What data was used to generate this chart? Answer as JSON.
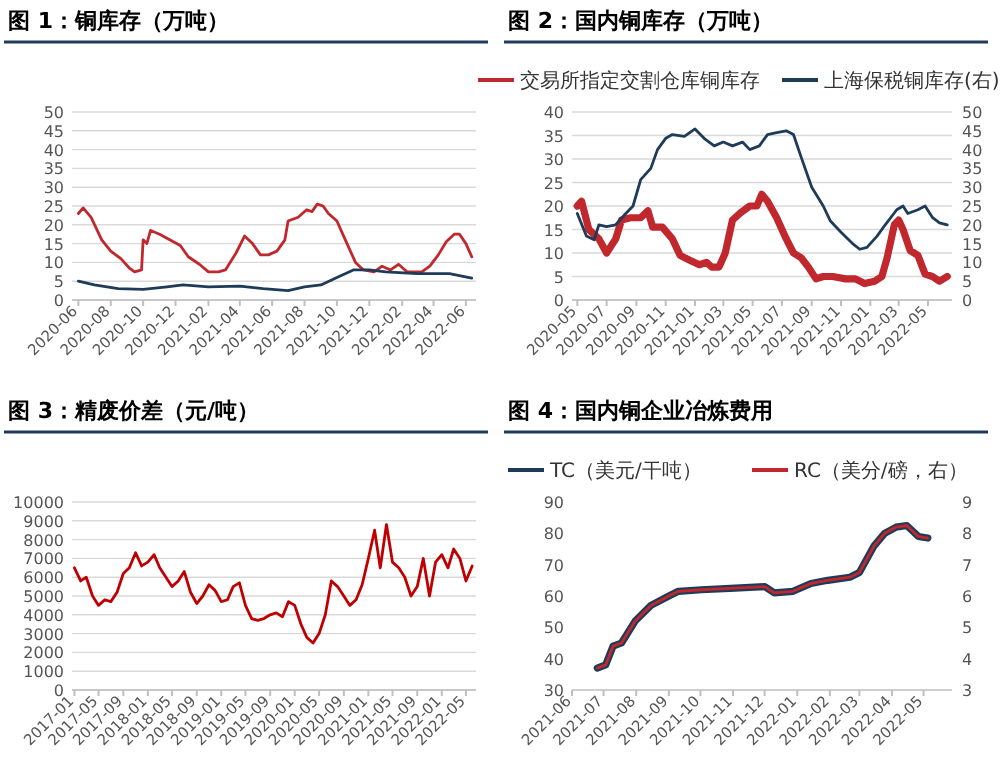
{
  "chart_data": [
    {
      "type": "line",
      "title": "图 1：铜库存（万吨）",
      "ylim": [
        0,
        50
      ],
      "yticks": [
        0,
        5,
        10,
        15,
        20,
        25,
        30,
        35,
        40,
        45,
        50
      ],
      "xlim": [
        "2020-05-20",
        "2022-06-20"
      ],
      "xticks": [
        "2020-06",
        "2020-08",
        "2020-10",
        "2020-12",
        "2021-02",
        "2021-04",
        "2021-06",
        "2021-08",
        "2021-10",
        "2021-12",
        "2022-02",
        "2022-04",
        "2022-06"
      ],
      "grid": "y",
      "legend": false,
      "series": [
        {
          "color": "#c0282d",
          "x": [
            "2020-06-01",
            "2020-06-10",
            "2020-06-25",
            "2020-07-15",
            "2020-08-01",
            "2020-08-20",
            "2020-09-05",
            "2020-09-15",
            "2020-09-28",
            "2020-10-01",
            "2020-10-08",
            "2020-10-15",
            "2020-11-01",
            "2020-11-20",
            "2020-12-10",
            "2020-12-25",
            "2021-01-15",
            "2021-02-01",
            "2021-02-20",
            "2021-03-05",
            "2021-03-25",
            "2021-04-10",
            "2021-04-25",
            "2021-05-10",
            "2021-05-25",
            "2021-06-10",
            "2021-06-25",
            "2021-07-01",
            "2021-07-20",
            "2021-08-05",
            "2021-08-15",
            "2021-08-25",
            "2021-09-05",
            "2021-09-15",
            "2021-10-01",
            "2021-10-20",
            "2021-11-05",
            "2021-11-20",
            "2021-12-10",
            "2021-12-25",
            "2022-01-10",
            "2022-01-25",
            "2022-02-10",
            "2022-02-25",
            "2022-03-10",
            "2022-03-25",
            "2022-04-10",
            "2022-04-25",
            "2022-05-10",
            "2022-05-20",
            "2022-06-01",
            "2022-06-12"
          ],
          "values": [
            23,
            24.5,
            22,
            16,
            13,
            11,
            8.5,
            7.5,
            8,
            16,
            15,
            18.5,
            17.5,
            16,
            14.5,
            11.5,
            9.5,
            7.5,
            7.5,
            8,
            12.5,
            17,
            15,
            12,
            12,
            13,
            16,
            21,
            22,
            24,
            23.5,
            25.5,
            25,
            23,
            21,
            15,
            10,
            8,
            7.5,
            9,
            8,
            9.5,
            7.5,
            7.5,
            7.5,
            9,
            12,
            15.5,
            17.5,
            17.5,
            15,
            11.5
          ]
        },
        {
          "color": "#1f3b5a",
          "x": [
            "2020-06-01",
            "2020-07-01",
            "2020-08-15",
            "2020-10-01",
            "2020-11-15",
            "2020-12-15",
            "2021-02-01",
            "2021-04-01",
            "2021-05-15",
            "2021-07-01",
            "2021-08-01",
            "2021-09-01",
            "2021-10-01",
            "2021-11-01",
            "2021-12-01",
            "2022-01-01",
            "2022-03-01",
            "2022-04-01",
            "2022-05-01",
            "2022-06-12"
          ],
          "values": [
            5,
            4,
            3,
            2.8,
            3.5,
            4,
            3.5,
            3.7,
            3,
            2.5,
            3.5,
            4,
            6,
            8,
            8,
            7.5,
            7,
            7,
            7,
            5.8
          ]
        }
      ]
    },
    {
      "type": "line",
      "title": "图 2：国内铜库存（万吨）",
      "ylim": [
        0,
        40
      ],
      "yticks": [
        0,
        5,
        10,
        15,
        20,
        25,
        30,
        35,
        40
      ],
      "y2lim": [
        0,
        50
      ],
      "y2ticks": [
        0,
        5,
        10,
        15,
        20,
        25,
        30,
        35,
        40,
        45,
        50
      ],
      "xlim": [
        "2020-04-20",
        "2022-06-20"
      ],
      "xticks": [
        "2020-05",
        "2020-07",
        "2020-09",
        "2020-11",
        "2021-01",
        "2021-03",
        "2021-05",
        "2021-07",
        "2021-09",
        "2021-11",
        "2022-01",
        "2022-03",
        "2022-05"
      ],
      "grid": "y",
      "legend": "top",
      "series": [
        {
          "name": "交易所指定交割仓库铜库存",
          "color": "#c0282d",
          "x": [
            "2020-05-01",
            "2020-05-10",
            "2020-05-25",
            "2020-06-15",
            "2020-07-01",
            "2020-07-20",
            "2020-08-01",
            "2020-08-20",
            "2020-09-10",
            "2020-09-25",
            "2020-10-05",
            "2020-10-25",
            "2020-11-15",
            "2020-12-01",
            "2020-12-20",
            "2021-01-10",
            "2021-01-25",
            "2021-02-05",
            "2021-02-20",
            "2021-03-05",
            "2021-03-20",
            "2021-04-05",
            "2021-04-25",
            "2021-05-10",
            "2021-05-20",
            "2021-06-01",
            "2021-06-20",
            "2021-07-10",
            "2021-07-25",
            "2021-08-10",
            "2021-08-25",
            "2021-09-10",
            "2021-09-25",
            "2021-10-15",
            "2021-11-10",
            "2021-12-01",
            "2021-12-20",
            "2022-01-10",
            "2022-01-25",
            "2022-02-05",
            "2022-02-20",
            "2022-03-01",
            "2022-03-10",
            "2022-03-25",
            "2022-04-10",
            "2022-04-25",
            "2022-05-10",
            "2022-05-25",
            "2022-06-10"
          ],
          "values": [
            20,
            21,
            15,
            13,
            10,
            13,
            17,
            17.5,
            17.5,
            19,
            15.5,
            15.5,
            13,
            9.5,
            8.5,
            7.5,
            8,
            7,
            7,
            10,
            17,
            18.5,
            20,
            20,
            22.5,
            21,
            17.5,
            13,
            10,
            9,
            7,
            4.5,
            5,
            5,
            4.5,
            4.5,
            3.5,
            4,
            5,
            9,
            16,
            17,
            15,
            10.5,
            9.5,
            5.5,
            5,
            4,
            5
          ]
        },
        {
          "name": "上海保税铜库存(右)",
          "color": "#1f3b5a",
          "axis": "y2",
          "x": [
            "2020-05-01",
            "2020-05-20",
            "2020-06-05",
            "2020-06-15",
            "2020-07-01",
            "2020-07-20",
            "2020-08-10",
            "2020-08-25",
            "2020-09-10",
            "2020-10-01",
            "2020-10-15",
            "2020-11-01",
            "2020-11-15",
            "2020-12-10",
            "2021-01-01",
            "2021-01-20",
            "2021-02-10",
            "2021-03-01",
            "2021-03-20",
            "2021-04-10",
            "2021-04-25",
            "2021-05-15",
            "2021-06-01",
            "2021-06-20",
            "2021-07-10",
            "2021-07-25",
            "2021-08-10",
            "2021-09-01",
            "2021-09-25",
            "2021-10-10",
            "2021-11-01",
            "2021-11-25",
            "2021-12-10",
            "2021-12-25",
            "2022-01-15",
            "2022-02-01",
            "2022-02-25",
            "2022-03-10",
            "2022-03-20",
            "2022-04-10",
            "2022-04-25",
            "2022-05-10",
            "2022-05-25",
            "2022-06-10"
          ],
          "values": [
            23,
            17,
            16,
            20,
            19.5,
            20,
            23,
            25,
            32,
            35,
            40,
            43,
            44,
            43.5,
            45.5,
            43,
            41,
            42,
            41,
            42,
            40,
            41,
            44,
            44.5,
            45,
            44,
            38,
            30,
            25,
            21,
            18,
            15,
            13.5,
            14,
            17,
            20,
            24,
            25,
            23,
            24,
            25,
            22,
            20.5,
            20
          ]
        }
      ]
    },
    {
      "type": "line",
      "title": "图 3：精废价差（元/吨）",
      "ylim": [
        0,
        10000
      ],
      "yticks": [
        0,
        1000,
        2000,
        3000,
        4000,
        5000,
        6000,
        7000,
        8000,
        9000,
        10000
      ],
      "xlim": [
        "2016-12-20",
        "2022-06-20"
      ],
      "xticks": [
        "2017-01",
        "2017-05",
        "2017-09",
        "2018-01",
        "2018-05",
        "2018-09",
        "2019-01",
        "2019-05",
        "2019-09",
        "2020-01",
        "2020-05",
        "2020-09",
        "2021-01",
        "2021-05",
        "2021-09",
        "2022-01",
        "2022-05"
      ],
      "grid": "y",
      "legend": false,
      "series": [
        {
          "color": "#c00000",
          "x": [
            "2017-01",
            "2017-02",
            "2017-03",
            "2017-04",
            "2017-05",
            "2017-06",
            "2017-07",
            "2017-08",
            "2017-09",
            "2017-10",
            "2017-11",
            "2017-12",
            "2018-01",
            "2018-02",
            "2018-03",
            "2018-04",
            "2018-05",
            "2018-06",
            "2018-07",
            "2018-08",
            "2018-09",
            "2018-10",
            "2018-11",
            "2018-12",
            "2019-01",
            "2019-02",
            "2019-03",
            "2019-04",
            "2019-05",
            "2019-06",
            "2019-07",
            "2019-08",
            "2019-09",
            "2019-10",
            "2019-11",
            "2019-12",
            "2020-01",
            "2020-02",
            "2020-03",
            "2020-04",
            "2020-05",
            "2020-06",
            "2020-07",
            "2020-08",
            "2020-09",
            "2020-10",
            "2020-11",
            "2020-12",
            "2021-01",
            "2021-02",
            "2021-03",
            "2021-04",
            "2021-05",
            "2021-06",
            "2021-07",
            "2021-08",
            "2021-09",
            "2021-10",
            "2021-11",
            "2021-12",
            "2022-01",
            "2022-02",
            "2022-03",
            "2022-04",
            "2022-05",
            "2022-06"
          ],
          "values": [
            6500,
            5800,
            6000,
            5000,
            4500,
            4800,
            4700,
            5200,
            6200,
            6500,
            7300,
            6600,
            6800,
            7200,
            6500,
            6000,
            5500,
            5800,
            6300,
            5200,
            4600,
            5000,
            5600,
            5300,
            4700,
            4800,
            5500,
            5700,
            4500,
            3800,
            3700,
            3800,
            4000,
            4100,
            3900,
            4700,
            4500,
            3500,
            2800,
            2500,
            3000,
            4000,
            5800,
            5500,
            5000,
            4500,
            4800,
            5600,
            7000,
            8500,
            6500,
            8800,
            6800,
            6500,
            6000,
            5000,
            5500,
            7000,
            5000,
            6800,
            7200,
            6500,
            7500,
            7000,
            5800,
            6600
          ]
        }
      ]
    },
    {
      "type": "line",
      "title": "图 4：国内铜企业冶炼费用",
      "ylim": [
        30,
        90
      ],
      "yticks": [
        30,
        40,
        50,
        60,
        70,
        80,
        90
      ],
      "y2lim": [
        3,
        9
      ],
      "y2ticks": [
        3,
        4,
        5,
        6,
        7,
        8,
        9
      ],
      "xlim": [
        "2021-06-01",
        "2022-05-28"
      ],
      "xticks": [
        "2021-06",
        "2021-07",
        "2021-08",
        "2021-09",
        "2021-10",
        "2021-11",
        "2021-12",
        "2022-01",
        "2022-02",
        "2022-03",
        "2022-04",
        "2022-05"
      ],
      "grid": false,
      "legend": "top",
      "series": [
        {
          "name": "TC（美元/干吨）",
          "color": "#1f3b5a",
          "x": [
            "2021-06-25",
            "2021-07-03",
            "2021-07-10",
            "2021-07-18",
            "2021-07-31",
            "2021-08-15",
            "2021-09-01",
            "2021-09-10",
            "2021-10-02",
            "2021-11-03",
            "2021-12-01",
            "2021-12-10",
            "2021-12-28",
            "2022-01-14",
            "2022-01-30",
            "2022-02-20",
            "2022-03-01",
            "2022-03-15",
            "2022-03-25",
            "2022-04-05",
            "2022-04-15",
            "2022-04-26",
            "2022-05-05"
          ],
          "values": [
            37,
            38,
            44,
            45,
            52,
            57,
            60,
            61.5,
            62,
            62.5,
            63,
            61,
            61.5,
            64,
            65,
            66,
            67.5,
            76,
            80,
            82,
            82.5,
            79,
            78.5
          ]
        },
        {
          "name": "RC（美分/磅，右）",
          "color": "#c0282d",
          "axis": "y2",
          "x": [
            "2021-06-25",
            "2021-07-03",
            "2021-07-10",
            "2021-07-18",
            "2021-07-31",
            "2021-08-15",
            "2021-09-01",
            "2021-09-10",
            "2021-10-02",
            "2021-11-03",
            "2021-12-01",
            "2021-12-10",
            "2021-12-28",
            "2022-01-14",
            "2022-01-30",
            "2022-02-20",
            "2022-03-01",
            "2022-03-15",
            "2022-03-25",
            "2022-04-05",
            "2022-04-15",
            "2022-04-26",
            "2022-05-05"
          ],
          "values": [
            3.7,
            3.8,
            4.4,
            4.5,
            5.2,
            5.7,
            6,
            6.15,
            6.2,
            6.25,
            6.3,
            6.1,
            6.15,
            6.4,
            6.5,
            6.6,
            6.75,
            7.6,
            8,
            8.2,
            8.25,
            7.9,
            7.85
          ]
        }
      ]
    }
  ]
}
